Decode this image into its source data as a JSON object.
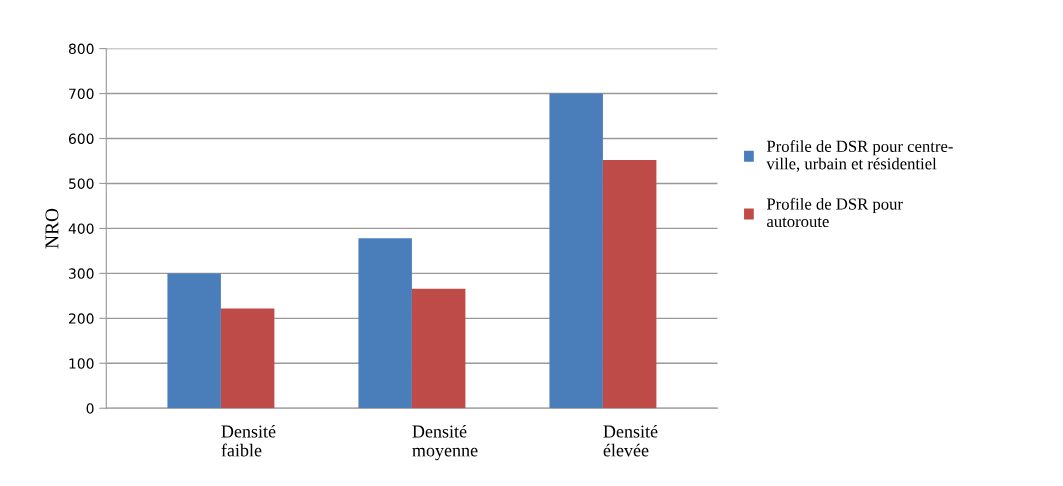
{
  "chart_data": {
    "type": "bar",
    "ylabel": "NRO",
    "categories": [
      "Densité\nfaible",
      "Densité\nmoyenne",
      "Densité\nélevée"
    ],
    "series": [
      {
        "name": "Profile de DSR pour centre-\nville, urbain et résidentiel",
        "color": "#4a7ebb",
        "values": [
          300,
          378,
          700
        ]
      },
      {
        "name": "Profile de DSR pour\nautoroute",
        "color": "#be4b48",
        "values": [
          222,
          266,
          552
        ]
      }
    ],
    "ylim": [
      0,
      800
    ],
    "yticks": [
      0,
      100,
      200,
      300,
      400,
      500,
      600,
      700,
      800
    ],
    "grid": "y",
    "legend": "right"
  }
}
